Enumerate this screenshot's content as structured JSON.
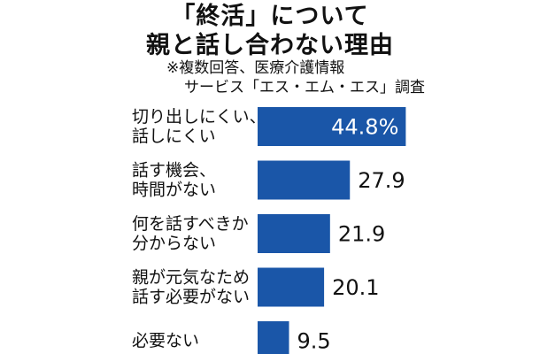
{
  "title": {
    "line1": "「終活」について",
    "line2": "親と話し合わない理由"
  },
  "note": {
    "line1": "※複数回答、医療介護情報",
    "line2": "サービス「エス・エム・エス」調査"
  },
  "colors": {
    "bar": "#1a56a8",
    "text": "#111111",
    "inside_label": "#ffffff"
  },
  "chart_data": {
    "type": "bar",
    "orientation": "horizontal",
    "categories": [
      [
        "切り出しにくい、",
        "話しにくい"
      ],
      [
        "話す機会、",
        "時間がない"
      ],
      [
        "何を話すべきか",
        "分からない"
      ],
      [
        "親が元気なため",
        "話す必要がない"
      ],
      [
        "必要ない"
      ]
    ],
    "values": [
      44.8,
      27.9,
      21.9,
      20.1,
      9.5
    ],
    "value_labels": [
      "44.8%",
      "27.9",
      "21.9",
      "20.1",
      "9.5"
    ],
    "xlim": [
      0,
      45.5
    ],
    "grid": false,
    "legend": "none"
  }
}
